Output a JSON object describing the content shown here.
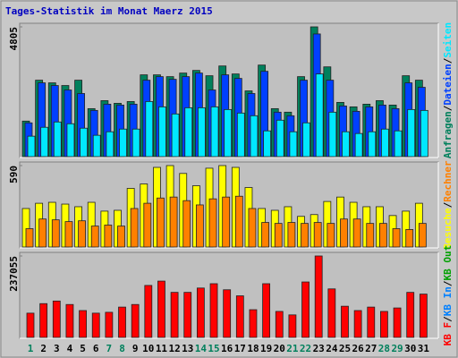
{
  "title": "Tages-Statistik im Monat Maerz 2015",
  "legend_separator": "/",
  "chart_data": [
    {
      "type": "bar",
      "ylim": [
        0,
        4805
      ],
      "yticks": [
        4805
      ],
      "series": [
        {
          "name": "Anfragen",
          "color": "#00805c",
          "values": [
            1316,
            2830,
            2732,
            2633,
            2830,
            1777,
            2073,
            1975,
            2040,
            3028,
            3028,
            2962,
            3094,
            3192,
            2995,
            3357,
            3061,
            2435,
            3390,
            1777,
            1646,
            2962,
            4805,
            3324,
            2008,
            1843,
            1942,
            2073,
            1909,
            2995,
            2830
          ]
        },
        {
          "name": "Dateien",
          "color": "#0040ff",
          "values": [
            1251,
            2732,
            2633,
            2468,
            2337,
            1711,
            1942,
            1909,
            1942,
            2830,
            2962,
            2863,
            2962,
            3094,
            2468,
            3028,
            2896,
            2337,
            3159,
            1646,
            1514,
            2830,
            4542,
            2830,
            1876,
            1678,
            1843,
            1909,
            1777,
            2732,
            2567
          ]
        },
        {
          "name": "Seiten",
          "color": "#00e8ff",
          "values": [
            757,
            1086,
            1283,
            1218,
            1053,
            790,
            921,
            1020,
            1020,
            2040,
            1843,
            1580,
            1810,
            1810,
            1843,
            1744,
            1613,
            1514,
            954,
            1349,
            921,
            1251,
            3061,
            1646,
            921,
            856,
            921,
            1020,
            954,
            1744,
            1711
          ]
        }
      ]
    },
    {
      "type": "bar",
      "ylim": [
        0,
        590
      ],
      "yticks": [
        590
      ],
      "series": [
        {
          "name": "Besuche",
          "color": "#ffff00",
          "values": [
            279,
            317,
            324,
            311,
            292,
            324,
            260,
            266,
            425,
            457,
            577,
            590,
            533,
            444,
            571,
            590,
            577,
            431,
            279,
            266,
            292,
            222,
            235,
            330,
            362,
            324,
            292,
            292,
            228,
            260,
            317
          ]
        },
        {
          "name": "Rechner",
          "color": "#ff8000",
          "values": [
            133,
            203,
            197,
            184,
            190,
            152,
            159,
            152,
            279,
            317,
            355,
            362,
            336,
            305,
            349,
            362,
            368,
            279,
            178,
            171,
            178,
            171,
            178,
            171,
            203,
            203,
            171,
            171,
            133,
            127,
            171
          ]
        }
      ]
    },
    {
      "type": "bar",
      "ylim": [
        0,
        237055
      ],
      "yticks": [
        237055
      ],
      "categories": [
        "1",
        "2",
        "3",
        "4",
        "5",
        "6",
        "7",
        "8",
        "9",
        "10",
        "11",
        "12",
        "13",
        "14",
        "15",
        "16",
        "17",
        "18",
        "19",
        "20",
        "21",
        "22",
        "23",
        "24",
        "25",
        "26",
        "27",
        "28",
        "29",
        "30",
        "31"
      ],
      "category_colors": [
        "#00805c",
        "#000000",
        "#000000",
        "#000000",
        "#000000",
        "#000000",
        "#00805c",
        "#00805c",
        "#000000",
        "#000000",
        "#000000",
        "#000000",
        "#000000",
        "#00805c",
        "#00805c",
        "#000000",
        "#000000",
        "#000000",
        "#000000",
        "#000000",
        "#00805c",
        "#00805c",
        "#000000",
        "#000000",
        "#000000",
        "#000000",
        "#000000",
        "#00805c",
        "#00805c",
        "#000000",
        "#000000"
      ],
      "series": [
        {
          "name": "KB F",
          "color": "#ff0000",
          "values": [
            70616,
            98358,
            105924,
            95836,
            78182,
            70616,
            73138,
            88270,
            95836,
            151320,
            163930,
            131144,
            131144,
            143754,
            156364,
            138710,
            121056,
            80704,
            156364,
            75660,
            65572,
            161408,
            237055,
            141232,
            90792,
            78182,
            88270,
            75660,
            85748,
            131144,
            126100
          ]
        }
      ],
      "legend_extra": [
        {
          "name": "KB In",
          "color": "#0080ff"
        },
        {
          "name": "KB Out",
          "color": "#00a000"
        }
      ]
    }
  ]
}
